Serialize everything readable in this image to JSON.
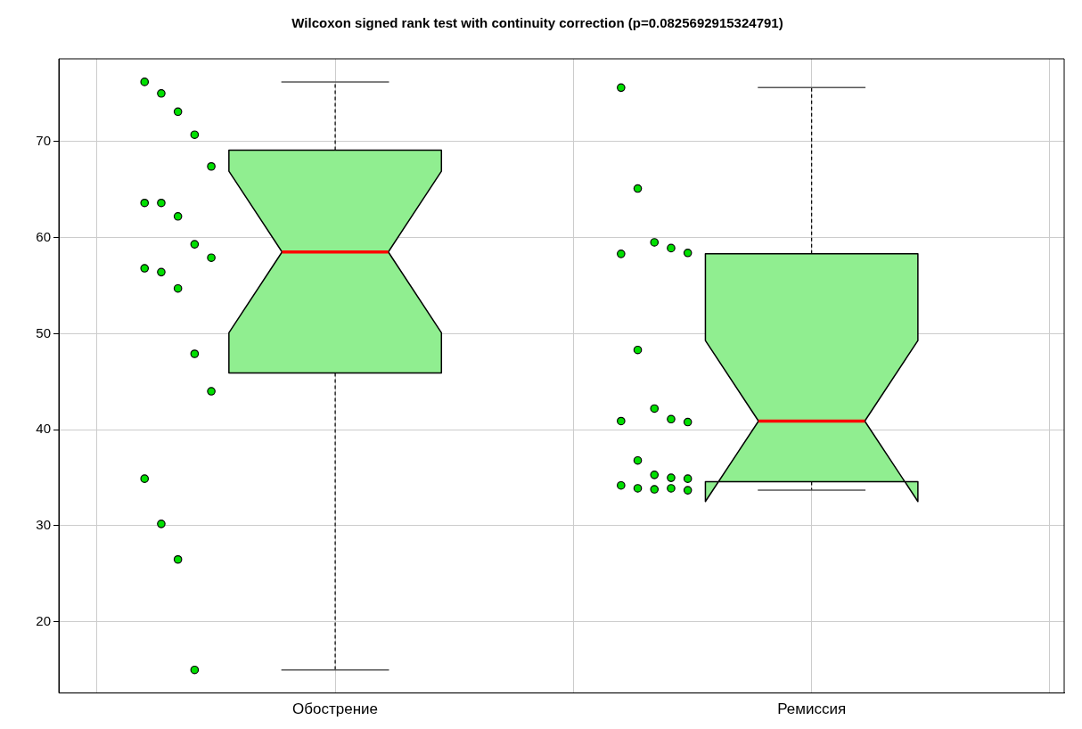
{
  "chart_data": {
    "type": "box",
    "title": "Wilcoxon signed rank test with continuity correction (p=0.0825692915324791)",
    "categories": [
      "Обострение",
      "Ремиссия"
    ],
    "color": "#90ee90",
    "boxes": [
      {
        "low": 15.0,
        "q1": 45.9,
        "median": 58.5,
        "q3": 69.1,
        "high": 76.2
      },
      {
        "low": 33.7,
        "q1": 34.6,
        "median": 40.9,
        "q3": 58.3,
        "high": 75.6
      }
    ],
    "series": [
      {
        "type": "scatter",
        "color": "#00e000",
        "x": [
          "Обострение",
          "Обострение",
          "Обострение",
          "Обострение",
          "Обострение",
          "Обострение",
          "Обострение",
          "Обострение",
          "Обострение",
          "Обострение",
          "Обострение",
          "Обострение",
          "Обострение",
          "Обострение",
          "Обострение",
          "Обострение",
          "Обострение",
          "Обострение",
          "Обострение",
          "Ремиссия",
          "Ремиссия",
          "Ремиссия",
          "Ремиссия",
          "Ремиссия",
          "Ремиссия",
          "Ремиссия",
          "Ремиссия",
          "Ремиссия",
          "Ремиссия",
          "Ремиссия",
          "Ремиссия",
          "Ремиссия",
          "Ремиссия",
          "Ремиссия",
          "Ремиссия",
          "Ремиссия",
          "Ремиссия",
          "Ремиссия",
          "Ремиссия"
        ],
        "values": [
          76.2,
          75.0,
          73.1,
          70.7,
          67.4,
          63.6,
          63.6,
          62.2,
          59.3,
          57.9,
          56.8,
          56.4,
          54.7,
          47.9,
          44.0,
          34.9,
          30.2,
          26.5,
          15.0,
          75.6,
          65.1,
          59.5,
          58.9,
          58.4,
          58.3,
          48.3,
          42.2,
          41.1,
          40.8,
          40.9,
          36.8,
          35.3,
          35.0,
          34.9,
          34.2,
          33.9,
          33.8,
          33.9,
          33.7
        ]
      }
    ],
    "ylim": [
      12.6,
      78.6
    ],
    "yticks": [
      20,
      30,
      40,
      50,
      60,
      70
    ],
    "grid": true,
    "marker": "circle"
  }
}
